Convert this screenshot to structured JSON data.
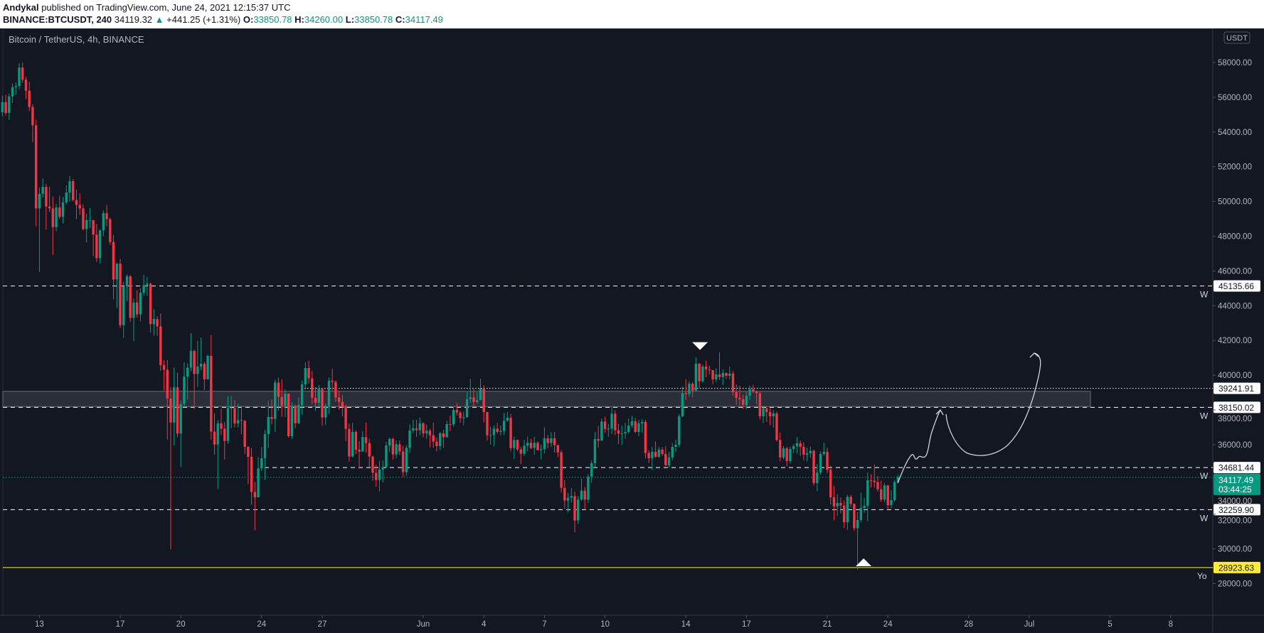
{
  "header": {
    "author": "Andykal",
    "published": "published on TradingView.com, June 24, 2021 12:15:37 UTC",
    "symbol": "BINANCE:BTCUSDT, 240",
    "last": "34119.32",
    "change": "+441.25 (+1.31%)",
    "o_label": "O:",
    "o": "33850.78",
    "h_label": "H:",
    "h": "34260.00",
    "l_label": "L:",
    "l": "33850.78",
    "c_label": "C:",
    "c": "34117.49"
  },
  "chart_title": "Bitcoin / TetherUS, 4h, BINANCE",
  "currency_badge": "USDT",
  "colors": {
    "up": "#089981",
    "down": "#f23645",
    "background": "#131722",
    "support": "#ffeb3b",
    "zone": "#2a2e39",
    "level": "#ffffff"
  },
  "chart_data": {
    "type": "candlestick",
    "interval": "4h",
    "ylim": [
      27000,
      59500
    ],
    "y_ticks": [
      58000,
      56000,
      54000,
      52000,
      50000,
      48000,
      46000,
      44000,
      42000,
      40000,
      38000,
      36000,
      34000,
      32000,
      30000,
      28000
    ],
    "x_ticks": [
      {
        "label": "13",
        "day": -19
      },
      {
        "label": "17",
        "day": -15
      },
      {
        "label": "20",
        "day": -12
      },
      {
        "label": "24",
        "day": -8
      },
      {
        "label": "27",
        "day": -5
      },
      {
        "label": "Jun",
        "day": 0
      },
      {
        "label": "4",
        "day": 3
      },
      {
        "label": "7",
        "day": 6
      },
      {
        "label": "10",
        "day": 9
      },
      {
        "label": "14",
        "day": 13
      },
      {
        "label": "17",
        "day": 16
      },
      {
        "label": "21",
        "day": 20
      },
      {
        "label": "24",
        "day": 23
      },
      {
        "label": "28",
        "day": 27
      },
      {
        "label": "Jul",
        "day": 30
      },
      {
        "label": "5",
        "day": 34
      },
      {
        "label": "8",
        "day": 37
      }
    ],
    "first_open": 55135,
    "close": [
      55720,
      55100,
      56050,
      56580,
      56650,
      57710,
      57010,
      56375,
      55440,
      54385,
      49600,
      50440,
      50840,
      49710,
      49600,
      48520,
      49660,
      49110,
      49950,
      50515,
      51170,
      50080,
      49800,
      49600,
      48410,
      48925,
      48925,
      48100,
      46735,
      48340,
      49330,
      48980,
      47670,
      45510,
      46425,
      42880,
      45110,
      45690,
      43300,
      44180,
      43500,
      44740,
      45180,
      45270,
      42940,
      43230,
      42810,
      40580,
      40310,
      38650,
      37275,
      39300,
      36640,
      38335,
      39920,
      40435,
      41400,
      40070,
      40490,
      40650,
      39760,
      41110,
      36750,
      36010,
      37224,
      36924,
      36215,
      38110,
      38110,
      37224,
      37414,
      37374,
      35874,
      35302,
      33270,
      32970,
      34634,
      35220,
      36610,
      37592,
      37483,
      39580,
      38750,
      38246,
      38940,
      36488,
      38232,
      37237,
      38287,
      39473,
      40413,
      39813,
      38696,
      38410,
      39214,
      37564,
      38246,
      39677,
      39609,
      38710,
      38464,
      38178,
      36910,
      35316,
      36733,
      35710,
      35602,
      36435,
      36092,
      35316,
      34375,
      33966,
      34566,
      34716,
      35956,
      36324,
      35438,
      36024,
      35602,
      34416,
      35820,
      36815,
      36938,
      36829,
      37224,
      36651,
      36801,
      36542,
      36174,
      35915,
      36651,
      36434,
      37183,
      37170,
      38000,
      37851,
      37524,
      37578,
      38614,
      38723,
      38450,
      38560,
      39214,
      37878,
      36542,
      36556,
      36924,
      36733,
      36788,
      37374,
      37551,
      35806,
      36270,
      35724,
      35479,
      35942,
      36106,
      35806,
      36106,
      35684,
      35738,
      36365,
      36092,
      36365,
      35970,
      35561,
      33516,
      32780,
      32944,
      33039,
      31635,
      32835,
      33353,
      32835,
      34157,
      34934,
      36324,
      36229,
      37333,
      36910,
      36924,
      37783,
      36829,
      36638,
      36651,
      36733,
      37101,
      37347,
      36733,
      37224,
      37306,
      35520,
      35220,
      35588,
      35302,
      35711,
      35466,
      34811,
      35261,
      35874,
      35997,
      37633,
      38969,
      38914,
      39514,
      39105,
      40659,
      39650,
      40495,
      40332,
      40291,
      39759,
      40045,
      39895,
      40127,
      39964,
      40086,
      39023,
      38696,
      38614,
      38287,
      38819,
      39187,
      39050,
      38955,
      37633,
      38096,
      37878,
      37633,
      37796,
      36270,
      35261,
      35793,
      35057,
      35752,
      35915,
      36079,
      35874,
      35425,
      35507,
      35643,
      33789,
      34389,
      35466,
      35588,
      34552,
      32971,
      32453,
      32644,
      32493,
      31539,
      32997,
      32589,
      31185,
      31662,
      32357,
      32480,
      33952,
      33925,
      33843,
      33434,
      32835,
      33652,
      32521,
      32807,
      33850,
      34117
    ],
    "high": [
      56100,
      56140,
      56200,
      56800,
      56860,
      57960,
      58000,
      57180,
      56900,
      55600,
      54700,
      50800,
      51340,
      51020,
      50840,
      50290,
      49860,
      50330,
      50260,
      50930,
      51460,
      51290,
      50680,
      50460,
      49840,
      49290,
      49630,
      48930,
      48710,
      48400,
      49490,
      49800,
      49080,
      48050,
      46470,
      46690,
      45370,
      45800,
      45760,
      44410,
      44880,
      45000,
      45770,
      45660,
      45320,
      43810,
      43400,
      43560,
      40870,
      40870,
      39300,
      40440,
      40140,
      38540,
      40740,
      40680,
      42420,
      41460,
      41970,
      42170,
      40780,
      41180,
      42310,
      37800,
      37420,
      38080,
      37300,
      38800,
      38800,
      38570,
      38360,
      38240,
      37400,
      35900,
      35790,
      33870,
      35280,
      35870,
      36850,
      38530,
      38600,
      39750,
      39870,
      39750,
      39180,
      38400,
      38440,
      38310,
      38730,
      39700,
      40740,
      40830,
      40240,
      39310,
      39440,
      39260,
      38370,
      39870,
      40370,
      39690,
      39120,
      38860,
      38300,
      37220,
      37250,
      36830,
      36200,
      36770,
      37280,
      36350,
      35380,
      34850,
      35060,
      35100,
      36170,
      36400,
      36410,
      36250,
      36240,
      35930,
      35970,
      37170,
      37430,
      37420,
      37550,
      37300,
      37170,
      36910,
      37270,
      36410,
      36720,
      36850,
      37370,
      37680,
      38200,
      38380,
      37950,
      37900,
      39020,
      39800,
      39210,
      39020,
      39800,
      39420,
      37890,
      37040,
      37100,
      37250,
      37100,
      37830,
      37880,
      37780,
      36460,
      36300,
      35880,
      36270,
      36460,
      36340,
      36460,
      36200,
      36000,
      37010,
      36560,
      36720,
      36730,
      36010,
      35690,
      33960,
      33220,
      33510,
      33300,
      33060,
      34040,
      33560,
      34300,
      35090,
      36710,
      37090,
      37510,
      37620,
      37200,
      38160,
      37980,
      37210,
      37080,
      37250,
      37500,
      37660,
      37550,
      37420,
      37470,
      37430,
      35680,
      35870,
      36200,
      35870,
      35860,
      35920,
      35580,
      36090,
      36290,
      37760,
      39350,
      39750,
      39660,
      39610,
      41030,
      40700,
      40600,
      40840,
      40540,
      40300,
      40410,
      41310,
      40330,
      40150,
      40490,
      40240,
      39470,
      39400,
      38880,
      39030,
      39390,
      39460,
      39130,
      39030,
      38220,
      38150,
      38100,
      37990,
      37910,
      36700,
      35920,
      35880,
      35880,
      36030,
      36440,
      36240,
      36130,
      35820,
      35900,
      35720,
      34880,
      35620,
      36110,
      35820,
      34790,
      33630,
      33160,
      32960,
      32790,
      33110,
      33110,
      32630,
      32130,
      33240,
      32930,
      34400,
      34300,
      34850,
      34180,
      33930,
      33790,
      33680,
      33370,
      33960,
      34260
    ],
    "low": [
      54900,
      54960,
      54700,
      55680,
      56140,
      56470,
      56840,
      55900,
      55200,
      53420,
      48560,
      45950,
      50230,
      48380,
      49410,
      46920,
      48280,
      48990,
      48730,
      49830,
      50000,
      50000,
      48980,
      49220,
      48340,
      47650,
      48460,
      46850,
      46520,
      46420,
      48010,
      48580,
      47500,
      44370,
      43870,
      42720,
      42150,
      44260,
      43070,
      41960,
      43320,
      43100,
      44570,
      44570,
      42460,
      42280,
      42270,
      40250,
      39120,
      36300,
      29970,
      35960,
      36430,
      34720,
      38150,
      38610,
      40220,
      38040,
      39330,
      40300,
      39150,
      40240,
      36300,
      35420,
      33450,
      36550,
      35140,
      36050,
      36950,
      37000,
      37000,
      36600,
      35470,
      33730,
      32530,
      31060,
      32970,
      34490,
      33960,
      35800,
      37180,
      36740,
      37950,
      37590,
      37590,
      36400,
      36330,
      36950,
      37180,
      37710,
      39170,
      39520,
      38330,
      37950,
      38170,
      37070,
      37130,
      37760,
      39050,
      38460,
      38020,
      37630,
      36210,
      35020,
      35270,
      35460,
      34620,
      35610,
      35550,
      34690,
      33920,
      33580,
      33310,
      33820,
      34630,
      35580,
      35140,
      35220,
      35400,
      34140,
      34200,
      35530,
      36680,
      36450,
      36550,
      36420,
      36330,
      35850,
      35830,
      35610,
      35690,
      35810,
      36400,
      36770,
      37030,
      37680,
      37270,
      37110,
      37560,
      38400,
      38210,
      38370,
      38940,
      37280,
      36230,
      36000,
      35900,
      36620,
      36540,
      36550,
      37320,
      35620,
      35180,
      35620,
      34880,
      35330,
      35620,
      35740,
      35430,
      35660,
      35150,
      35490,
      35790,
      35870,
      35550,
      35270,
      33240,
      32300,
      32100,
      32660,
      30950,
      31420,
      32780,
      32310,
      32650,
      33800,
      34680,
      35830,
      36510,
      36680,
      36450,
      36620,
      36560,
      36040,
      35980,
      36350,
      36640,
      36960,
      36670,
      36480,
      36690,
      35210,
      34950,
      34540,
      35240,
      35260,
      35360,
      34760,
      34680,
      35100,
      35580,
      35860,
      37590,
      38580,
      38760,
      38730,
      39080,
      39250,
      39570,
      39880,
      40040,
      39480,
      39620,
      39720,
      39430,
      39770,
      39760,
      38820,
      38290,
      38240,
      38050,
      38050,
      38580,
      38960,
      38320,
      37440,
      37240,
      37300,
      37110,
      36980,
      36180,
      35040,
      35140,
      34750,
      34910,
      35510,
      35480,
      35360,
      35100,
      35040,
      35250,
      33650,
      33320,
      34280,
      35370,
      34350,
      32560,
      31640,
      31900,
      32030,
      31200,
      31090,
      32410,
      31040,
      28800,
      31530,
      32080,
      31590,
      33540,
      33520,
      33300,
      32710,
      32700,
      32300,
      32360,
      32720,
      33850
    ],
    "levels": [
      {
        "price": 45135.66,
        "label": "45135.66",
        "style": "dashed",
        "tag": "W"
      },
      {
        "price": 39241.91,
        "label": "39241.91",
        "style": "dotted",
        "tag": ""
      },
      {
        "price": 38150.02,
        "label": "38150.02",
        "style": "dashed",
        "tag": "W"
      },
      {
        "price": 34681.44,
        "label": "34681.44",
        "style": "dashed",
        "tag": "W"
      },
      {
        "price": 32259.9,
        "label": "32259.90",
        "style": "dashed",
        "tag": "W"
      },
      {
        "price": 28923.63,
        "label": "28923.63",
        "style": "solid-yellow",
        "tag": "Yo"
      }
    ],
    "current_price": {
      "price": 34117.49,
      "label": "34117.49",
      "countdown": "03:44:25"
    },
    "zone": {
      "top": 39070,
      "bottom": 38190
    },
    "markers": [
      {
        "type": "sell-arrow-down",
        "day": 13.7,
        "price": 41900
      },
      {
        "type": "buy-arrow-up",
        "day": 21.8,
        "price": 29000
      }
    ]
  }
}
